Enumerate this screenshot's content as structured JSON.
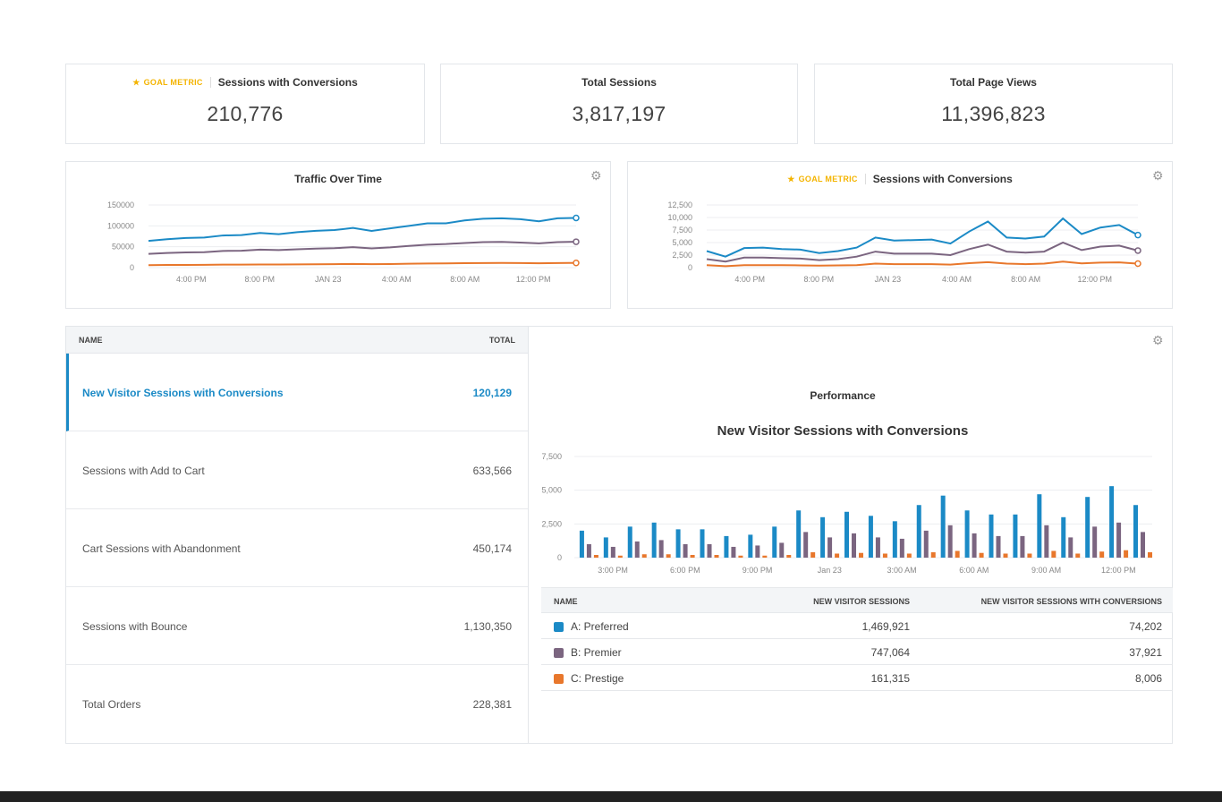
{
  "colors": {
    "blue": "#1b8ac6",
    "purple": "#7b6580",
    "orange": "#e8772c",
    "goal": "#f4b400"
  },
  "kpis": [
    {
      "goal_label": "GOAL METRIC",
      "title": "Sessions with Conversions",
      "value": "210,776"
    },
    {
      "title": "Total Sessions",
      "value": "3,817,197"
    },
    {
      "title": "Total Page Views",
      "value": "11,396,823"
    }
  ],
  "traffic_chart": {
    "title": "Traffic Over Time",
    "gear_icon": "gear-icon"
  },
  "conversions_chart": {
    "goal_label": "GOAL METRIC",
    "title": "Sessions with Conversions",
    "gear_icon": "gear-icon"
  },
  "metric_list": {
    "header_name": "NAME",
    "header_total": "TOTAL",
    "rows": [
      {
        "name": "New Visitor Sessions with Conversions",
        "total": "120,129"
      },
      {
        "name": "Sessions with Add to Cart",
        "total": "633,566"
      },
      {
        "name": "Cart Sessions with Abandonment",
        "total": "450,174"
      },
      {
        "name": "Sessions with Bounce",
        "total": "1,130,350"
      },
      {
        "name": "Total Orders",
        "total": "228,381"
      }
    ]
  },
  "performance": {
    "label": "Performance",
    "title": "New Visitor Sessions with Conversions",
    "table": {
      "headers": [
        "NAME",
        "NEW VISITOR SESSIONS",
        "NEW VISITOR SESSIONS WITH CONVERSIONS"
      ],
      "rows": [
        {
          "name": "A: Preferred",
          "sessions": "1,469,921",
          "conversions": "74,202"
        },
        {
          "name": "B: Premier",
          "sessions": "747,064",
          "conversions": "37,921"
        },
        {
          "name": "C: Prestige",
          "sessions": "161,315",
          "conversions": "8,006"
        }
      ]
    }
  },
  "chart_data": [
    {
      "type": "line",
      "title": "Traffic Over Time",
      "yticks": [
        "150000",
        "100000",
        "50000",
        "0"
      ],
      "ylim": [
        0,
        150000
      ],
      "xticks": [
        "4:00 PM",
        "8:00 PM",
        "JAN 23",
        "4:00 AM",
        "8:00 AM",
        "12:00 PM"
      ],
      "grid": true,
      "series": [
        {
          "color": "#1b8ac6",
          "values": [
            64000,
            68000,
            71000,
            72000,
            77000,
            78000,
            83000,
            80000,
            85000,
            88000,
            90000,
            95000,
            88000,
            94000,
            100000,
            106000,
            106000,
            113000,
            117000,
            118000,
            116000,
            111000,
            118000,
            119000
          ]
        },
        {
          "color": "#7b6580",
          "values": [
            33000,
            35000,
            36500,
            37000,
            40000,
            40500,
            43000,
            42000,
            44000,
            45500,
            46500,
            49000,
            46000,
            48500,
            52000,
            55000,
            56500,
            59000,
            61000,
            61500,
            60000,
            58000,
            61000,
            62000
          ]
        },
        {
          "color": "#e8772c",
          "values": [
            6000,
            6300,
            6500,
            6600,
            7100,
            7200,
            7600,
            7400,
            7900,
            8100,
            8300,
            8800,
            8200,
            8600,
            9300,
            9900,
            10200,
            10700,
            11000,
            11200,
            10900,
            10500,
            11100,
            11300
          ]
        }
      ]
    },
    {
      "type": "line",
      "title": "Sessions with Conversions",
      "yticks": [
        "12,500",
        "10,000",
        "7,500",
        "5,000",
        "2,500",
        "0"
      ],
      "ylim": [
        0,
        12500
      ],
      "xticks": [
        "4:00 PM",
        "8:00 PM",
        "JAN 23",
        "4:00 AM",
        "8:00 AM",
        "12:00 PM"
      ],
      "grid": true,
      "series": [
        {
          "color": "#1b8ac6",
          "values": [
            3300,
            2200,
            3900,
            4000,
            3700,
            3600,
            2900,
            3300,
            4000,
            6000,
            5400,
            5500,
            5600,
            4800,
            7200,
            9200,
            6000,
            5800,
            6200,
            9800,
            6700,
            8000,
            8500,
            6500
          ]
        },
        {
          "color": "#7b6580",
          "values": [
            1700,
            1200,
            2000,
            2000,
            1900,
            1800,
            1500,
            1700,
            2200,
            3200,
            2800,
            2800,
            2800,
            2500,
            3700,
            4600,
            3200,
            3000,
            3200,
            5000,
            3500,
            4200,
            4400,
            3400
          ]
        },
        {
          "color": "#e8772c",
          "values": [
            500,
            300,
            500,
            500,
            500,
            450,
            400,
            450,
            500,
            800,
            700,
            700,
            700,
            600,
            900,
            1100,
            800,
            700,
            800,
            1200,
            850,
            1000,
            1050,
            800
          ]
        }
      ]
    },
    {
      "type": "bar",
      "title": "New Visitor Sessions with Conversions",
      "yticks": [
        "7,500",
        "5,000",
        "2,500",
        "0"
      ],
      "ylim": [
        0,
        7500
      ],
      "xticks": [
        "3:00 PM",
        "6:00 PM",
        "9:00 PM",
        "Jan 23",
        "3:00 AM",
        "6:00 AM",
        "9:00 AM",
        "12:00 PM"
      ],
      "grid": true,
      "series": [
        {
          "name": "A: Preferred",
          "color": "#1b8ac6",
          "values": [
            2000,
            1500,
            2300,
            2600,
            2100,
            2100,
            1600,
            1700,
            2300,
            3500,
            3000,
            3400,
            3100,
            2700,
            3900,
            4600,
            3500,
            3200,
            3200,
            4700,
            3000,
            4500,
            5300,
            3900
          ]
        },
        {
          "name": "B: Premier",
          "color": "#7b6580",
          "values": [
            1000,
            800,
            1200,
            1300,
            1000,
            1000,
            800,
            900,
            1100,
            1900,
            1500,
            1800,
            1500,
            1400,
            2000,
            2400,
            1800,
            1600,
            1600,
            2400,
            1500,
            2300,
            2600,
            1900
          ]
        },
        {
          "name": "C: Prestige",
          "color": "#e8772c",
          "values": [
            200,
            150,
            250,
            250,
            200,
            200,
            150,
            150,
            200,
            400,
            300,
            350,
            300,
            300,
            400,
            500,
            350,
            300,
            300,
            500,
            300,
            450,
            550,
            400
          ]
        }
      ]
    }
  ]
}
